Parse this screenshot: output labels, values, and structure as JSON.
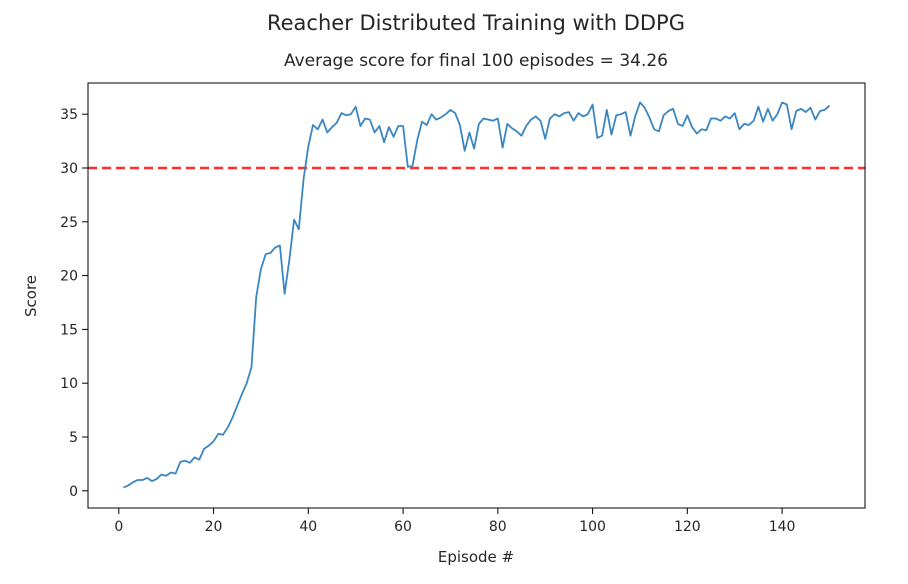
{
  "chart_data": {
    "type": "line",
    "title": "Reacher Distributed Training with DDPG",
    "subtitle": "Average score for final 100 episodes = 34.26",
    "xlabel": "Episode #",
    "ylabel": "Score",
    "xlim": [
      -6.5,
      157.5
    ],
    "ylim": [
      -1.6,
      37.9
    ],
    "xticks": [
      0,
      20,
      40,
      60,
      80,
      100,
      120,
      140
    ],
    "yticks": [
      0,
      5,
      10,
      15,
      20,
      25,
      30,
      35
    ],
    "grid": false,
    "series": [
      {
        "color": "#3a86c0",
        "x": [
          1,
          2,
          3,
          4,
          5,
          6,
          7,
          8,
          9,
          10,
          11,
          12,
          13,
          14,
          15,
          16,
          17,
          18,
          19,
          20,
          21,
          22,
          23,
          24,
          25,
          26,
          27,
          28,
          29,
          30,
          31,
          32,
          33,
          34,
          35,
          36,
          37,
          38,
          39,
          40,
          41,
          42,
          43,
          44,
          45,
          46,
          47,
          48,
          49,
          50,
          51,
          52,
          53,
          54,
          55,
          56,
          57,
          58,
          59,
          60,
          61,
          62,
          63,
          64,
          65,
          66,
          67,
          68,
          69,
          70,
          71,
          72,
          73,
          74,
          75,
          76,
          77,
          78,
          79,
          80,
          81,
          82,
          83,
          84,
          85,
          86,
          87,
          88,
          89,
          90,
          91,
          92,
          93,
          94,
          95,
          96,
          97,
          98,
          99,
          100,
          101,
          102,
          103,
          104,
          105,
          106,
          107,
          108,
          109,
          110,
          111,
          112,
          113,
          114,
          115,
          116,
          117,
          118,
          119,
          120,
          121,
          122,
          123,
          124,
          125,
          126,
          127,
          128,
          129,
          130,
          131,
          132,
          133,
          134,
          135,
          136,
          137,
          138,
          139,
          140,
          141,
          142,
          143,
          144,
          145,
          146,
          147,
          148,
          149,
          150
        ],
        "y": [
          0.3,
          0.5,
          0.8,
          1.0,
          1.0,
          1.2,
          0.9,
          1.1,
          1.5,
          1.4,
          1.7,
          1.6,
          2.7,
          2.8,
          2.6,
          3.1,
          2.9,
          3.9,
          4.2,
          4.6,
          5.3,
          5.2,
          5.9,
          6.8,
          7.9,
          9.0,
          10.0,
          11.5,
          18.0,
          20.6,
          22.0,
          22.1,
          22.6,
          22.8,
          18.3,
          21.5,
          25.2,
          24.3,
          29.0,
          32.0,
          34.0,
          33.6,
          34.5,
          33.3,
          33.8,
          34.2,
          35.1,
          34.9,
          35.0,
          35.7,
          33.9,
          34.6,
          34.5,
          33.3,
          33.9,
          32.4,
          33.8,
          32.9,
          33.9,
          33.9,
          30.1,
          30.2,
          32.6,
          34.3,
          34.0,
          35.0,
          34.5,
          34.7,
          35.0,
          35.4,
          35.1,
          34.0,
          31.6,
          33.3,
          31.8,
          34.1,
          34.6,
          34.5,
          34.4,
          34.6,
          31.9,
          34.1,
          33.7,
          33.4,
          33.0,
          33.9,
          34.5,
          34.8,
          34.4,
          32.7,
          34.6,
          35.0,
          34.8,
          35.1,
          35.2,
          34.4,
          35.1,
          34.8,
          35.0,
          35.9,
          32.8,
          33.0,
          35.4,
          33.1,
          34.9,
          35.0,
          35.2,
          33.0,
          34.8,
          36.1,
          35.6,
          34.7,
          33.6,
          33.4,
          34.9,
          35.3,
          35.5,
          34.1,
          33.9,
          34.9,
          33.8,
          33.2,
          33.6,
          33.5,
          34.6,
          34.6,
          34.4,
          34.8,
          34.6,
          35.1,
          33.6,
          34.1,
          34.0,
          34.4,
          35.7,
          34.3,
          35.5,
          34.4,
          35.0,
          36.1,
          35.9,
          33.6,
          35.3,
          35.5,
          35.2,
          35.6,
          34.5,
          35.3,
          35.4,
          35.8
        ]
      }
    ],
    "threshold": {
      "y": 30,
      "color": "#ff2d2d",
      "style": "dashed"
    }
  }
}
